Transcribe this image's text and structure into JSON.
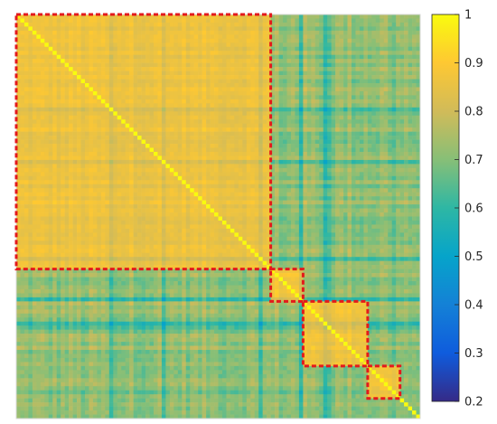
{
  "chart_data": {
    "type": "heatmap",
    "title": "",
    "xlabel": "",
    "ylabel": "",
    "n": 100,
    "color_range": [
      0.2,
      1
    ],
    "colormap": "parula",
    "colorbar_ticks": [
      1,
      0.9,
      0.8,
      0.7,
      0.6,
      0.5,
      0.4,
      0.3,
      0.2
    ],
    "colorbar_tick_labels": [
      "1",
      "0.9",
      "0.8",
      "0.7",
      "0.6",
      "0.5",
      "0.4",
      "0.3",
      "0.2"
    ],
    "clusters": [
      {
        "start": 1,
        "end": 63,
        "mean_within": 0.86
      },
      {
        "start": 64,
        "end": 71,
        "mean_within": 0.88
      },
      {
        "start": 72,
        "end": 87,
        "mean_within": 0.87
      },
      {
        "start": 88,
        "end": 95,
        "mean_within": 0.88
      }
    ],
    "diagonal_value": 1,
    "mean_between_clusters": 0.72,
    "highlight_color": "#e31a1c",
    "highlight_style": "dashed"
  }
}
